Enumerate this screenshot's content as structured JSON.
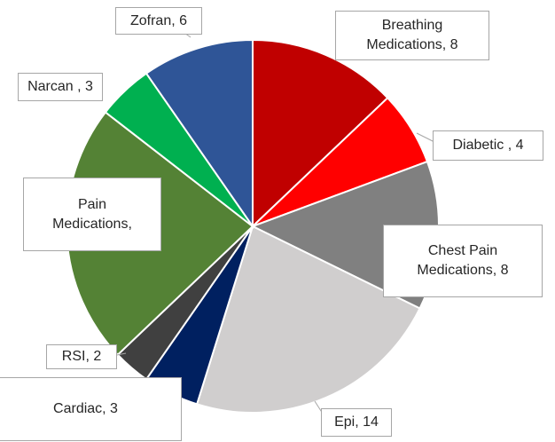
{
  "chart_data": {
    "type": "pie",
    "values": [
      8,
      4,
      8,
      14,
      3,
      2,
      14,
      3,
      6
    ],
    "value_labels": [
      "Breathing Medications, 8",
      "Diabetic , 4",
      "Chest Pain Medications, 8",
      "Epi, 14",
      "Cardiac, 3",
      "RSI, 2",
      "Pain Medications,",
      "Narcan , 3",
      "Zofran, 6"
    ],
    "colors": [
      "#c00000",
      "#ff0000",
      "#808080",
      "#d0cece",
      "#002060",
      "#404040",
      "#548235",
      "#00b050",
      "#2f5597"
    ]
  }
}
